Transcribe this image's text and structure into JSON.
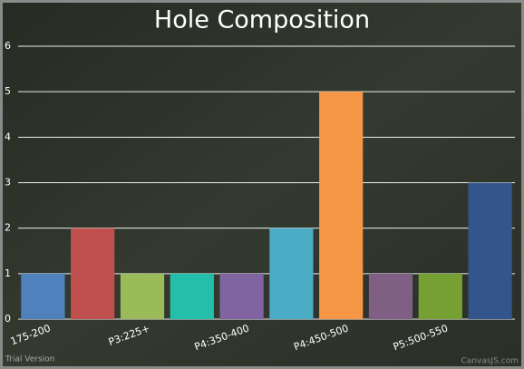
{
  "chart_data": {
    "type": "bar",
    "title": "Hole Composition",
    "categories": [
      "175-200",
      null,
      "P3:225+",
      null,
      "P4:350-400",
      null,
      "P4:450-500",
      null,
      "P5:500-550",
      null
    ],
    "values": [
      1,
      2,
      1,
      1,
      1,
      2,
      5,
      1,
      1,
      3
    ],
    "colors": [
      "#4f81bc",
      "#c0504e",
      "#9bbb58",
      "#23bfaa",
      "#8064a1",
      "#4aacc5",
      "#f79647",
      "#7f6084",
      "#77a033",
      "#33558b"
    ],
    "ylim": [
      0,
      6
    ],
    "yticks": [
      0,
      1,
      2,
      3,
      4,
      5,
      6
    ],
    "grid": true,
    "watermark": "Trial Version",
    "credit": "CanvasJS.com"
  }
}
